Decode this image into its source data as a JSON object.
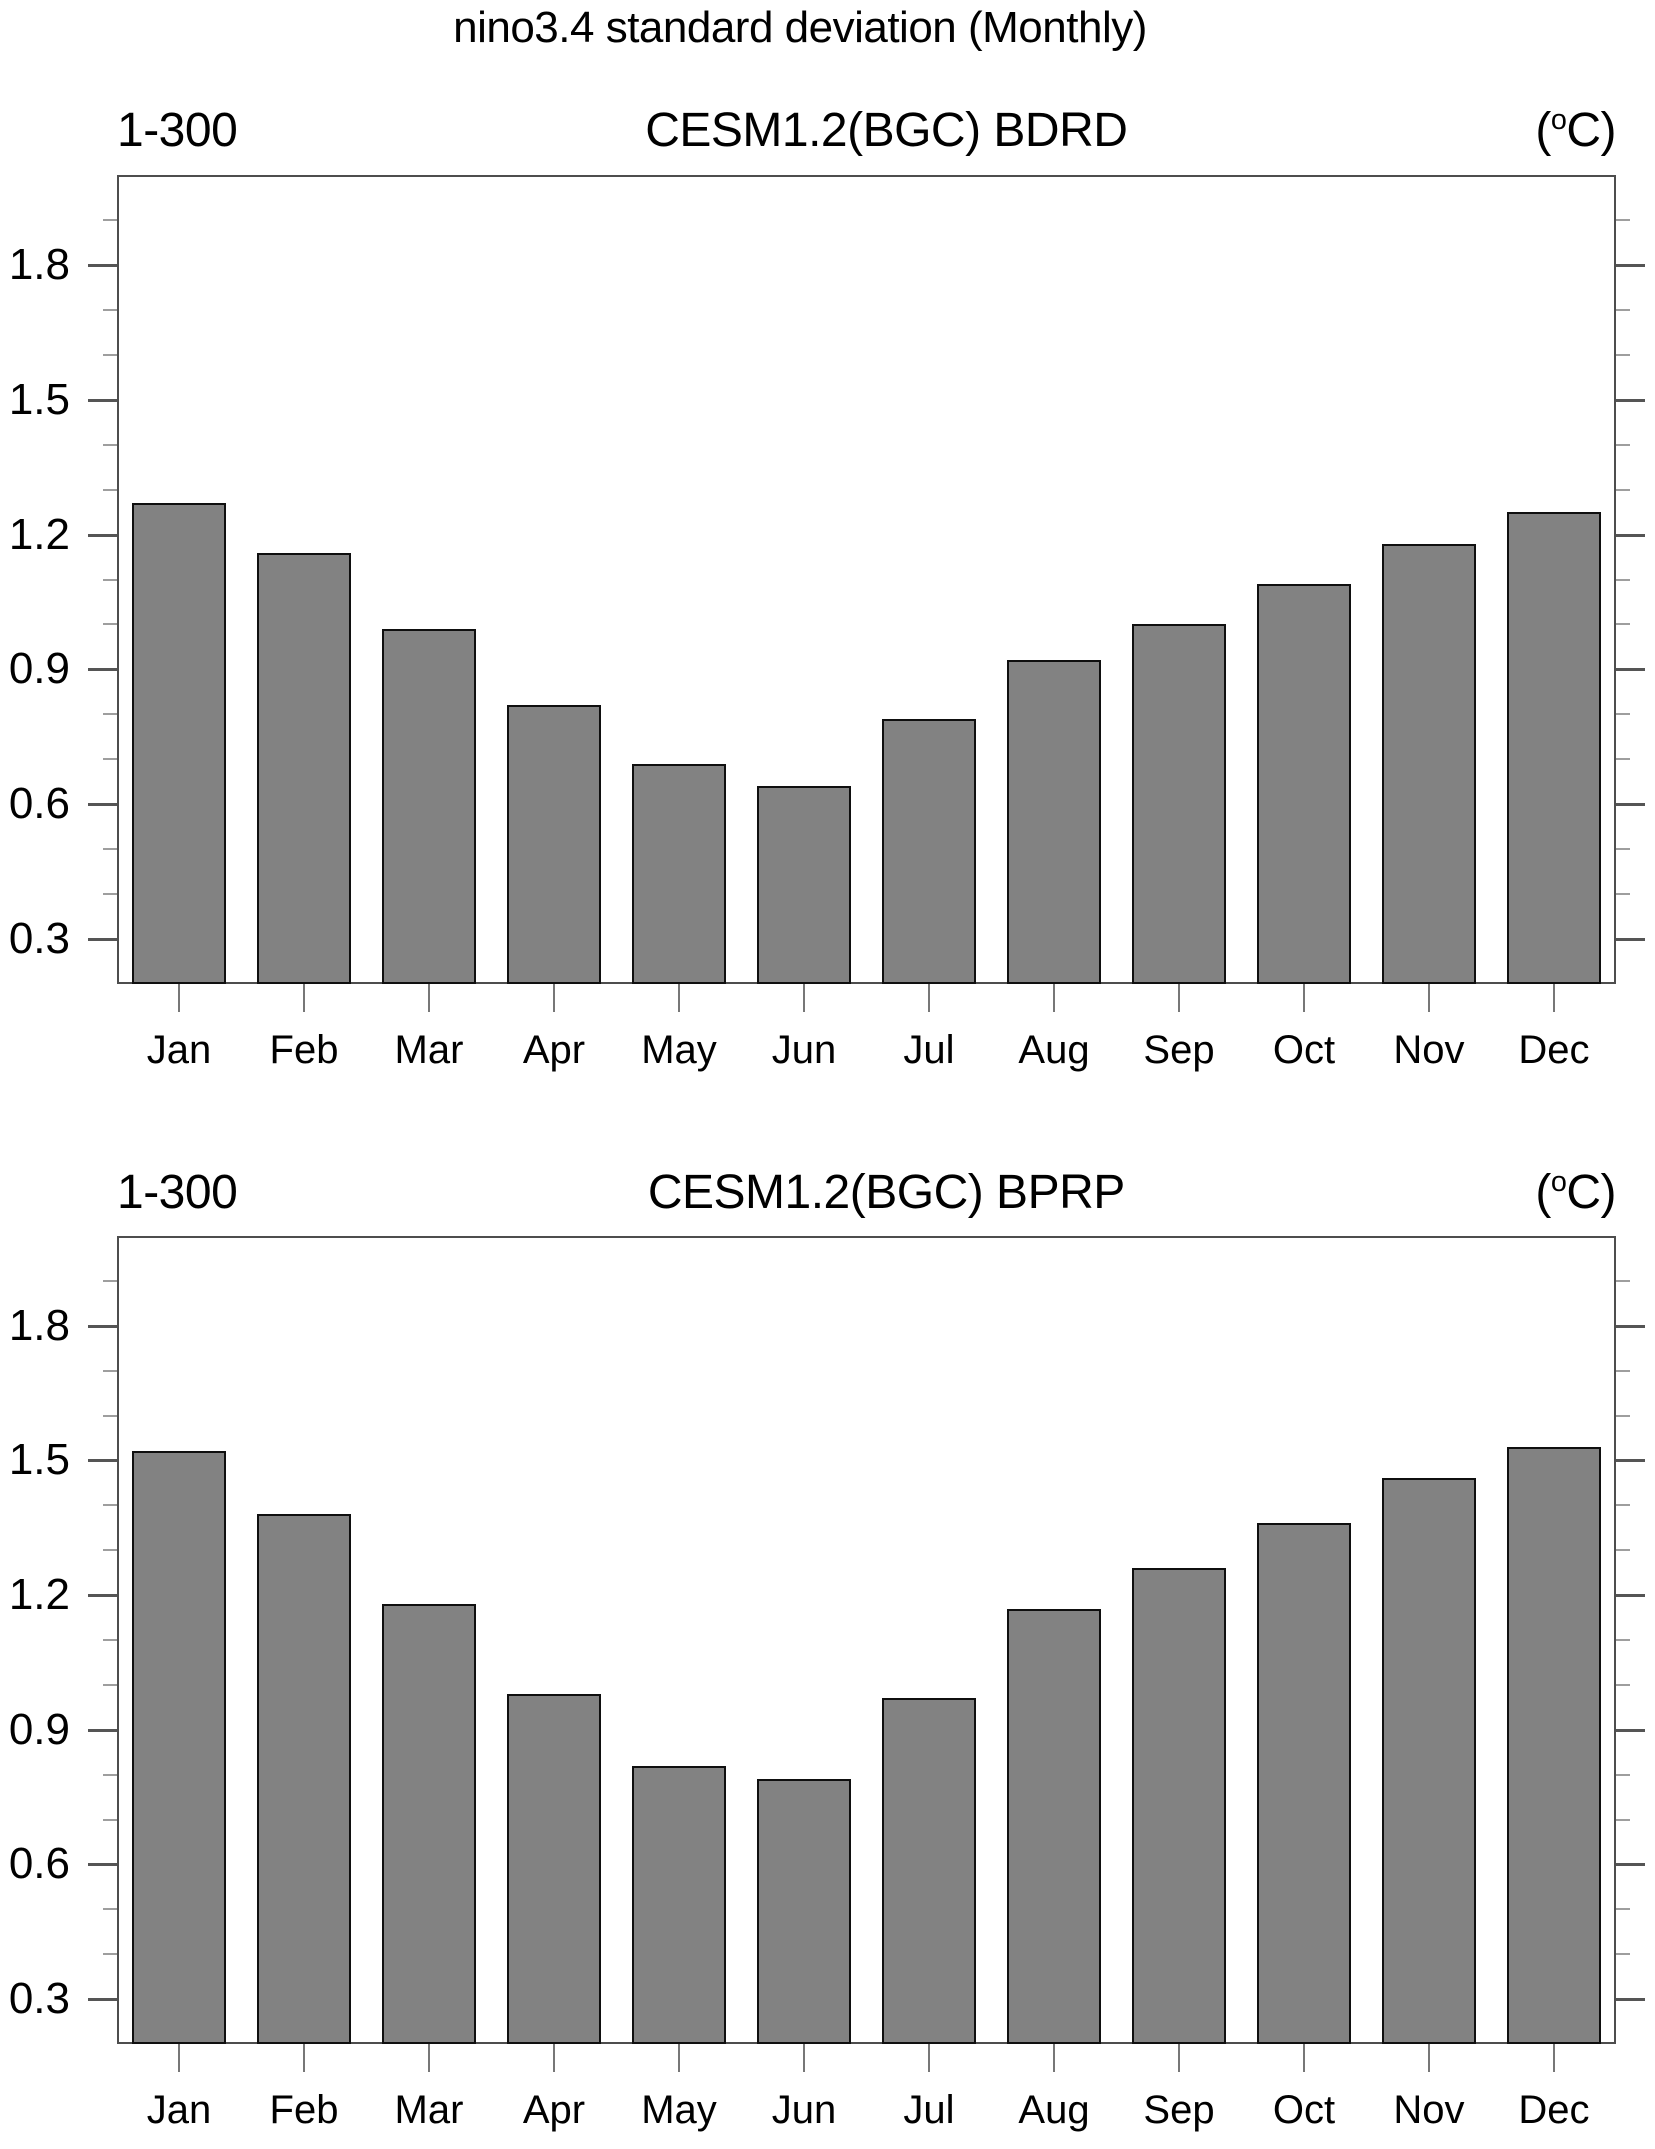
{
  "main_title": "nino3.4 standard deviation (Monthly)",
  "unit": {
    "open": "(",
    "degree": "o",
    "close": "C)"
  },
  "y_axis": {
    "min": 0.2,
    "max": 2.0,
    "major_ticks": [
      0.3,
      0.6,
      0.9,
      1.2,
      1.5,
      1.8
    ],
    "major_tick_labels": [
      "0.3",
      "0.6",
      "0.9",
      "1.2",
      "1.5",
      "1.8"
    ],
    "minor_step": 0.1,
    "grid": false
  },
  "colors": {
    "bar_fill": "#828282",
    "bar_outline": "#0f0f0f",
    "frame": "#4d4d4d",
    "major_tick": "#555555",
    "minor_tick": "#9e9e9e",
    "category_tick": "#777777",
    "text": "#000000"
  },
  "chart_data": [
    {
      "type": "bar",
      "title": "CESM1.2(BGC) BDRD",
      "range_label": "1-300",
      "unit_label": "(°C)",
      "categories": [
        "Jan",
        "Feb",
        "Mar",
        "Apr",
        "May",
        "Jun",
        "Jul",
        "Aug",
        "Sep",
        "Oct",
        "Nov",
        "Dec"
      ],
      "values": [
        1.27,
        1.16,
        0.99,
        0.82,
        0.69,
        0.64,
        0.79,
        0.92,
        1.0,
        1.09,
        1.18,
        1.25
      ],
      "xlabel": "",
      "ylabel": "",
      "ylim": [
        0.2,
        2.0
      ],
      "legend": null
    },
    {
      "type": "bar",
      "title": "CESM1.2(BGC) BPRP",
      "range_label": "1-300",
      "unit_label": "(°C)",
      "categories": [
        "Jan",
        "Feb",
        "Mar",
        "Apr",
        "May",
        "Jun",
        "Jul",
        "Aug",
        "Sep",
        "Oct",
        "Nov",
        "Dec"
      ],
      "values": [
        1.52,
        1.38,
        1.18,
        0.98,
        0.82,
        0.79,
        0.97,
        1.17,
        1.26,
        1.36,
        1.46,
        1.53
      ],
      "xlabel": "",
      "ylabel": "",
      "ylim": [
        0.2,
        2.0
      ],
      "legend": null
    }
  ]
}
